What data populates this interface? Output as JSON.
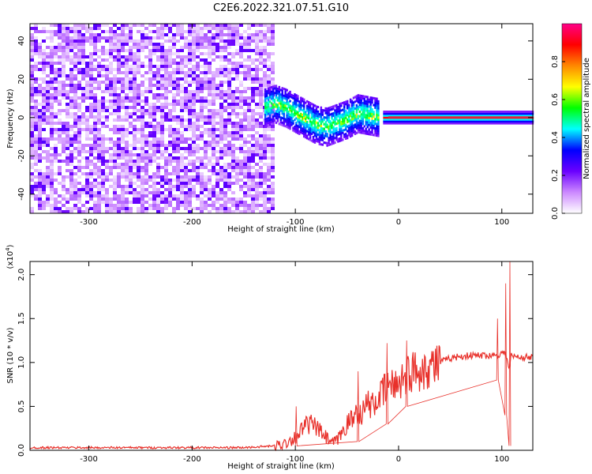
{
  "figure": {
    "title": "C2E6.2022.321.07.51.G10"
  },
  "colors": {
    "snr_line": "#e8302a",
    "ridge": "#e51e3a",
    "axis": "#000000"
  },
  "chart_data": [
    {
      "type": "heatmap",
      "title": "",
      "xlabel": "Height of straight line (km)",
      "ylabel": "Frequency (Hz)",
      "xlim": [
        -357,
        130
      ],
      "ylim": [
        -50,
        49
      ],
      "x_ticks": [
        -300,
        -200,
        -100,
        0,
        100
      ],
      "y_ticks": [
        -40,
        -20,
        0,
        20,
        40
      ],
      "x_tick_labels": [
        "-300",
        "-200",
        "-100",
        "0",
        "100"
      ],
      "y_tick_labels": [
        "-40",
        "-20",
        "0",
        "20",
        "40"
      ],
      "colorbar": {
        "label": "Normalized spectral amplitude",
        "range": [
          0.0,
          1.0
        ],
        "ticks": [
          0.0,
          0.2,
          0.4,
          0.6,
          0.8
        ],
        "tick_labels": [
          "0.0",
          "0.2",
          "0.4",
          "0.6",
          "0.8"
        ],
        "colormap": [
          "#ffffff",
          "#cc88ff",
          "#6a00ff",
          "#0000ff",
          "#00ffff",
          "#00ff00",
          "#ffff00",
          "#ff8800",
          "#ff0000",
          "#ff0088"
        ]
      },
      "regions": [
        {
          "name": "noise",
          "x_range": [
            -357,
            -120
          ],
          "freq_range": [
            -50,
            49
          ],
          "amplitude": 0.15
        },
        {
          "name": "onset",
          "x_range": [
            -130,
            -20
          ],
          "amplitude": 0.45
        },
        {
          "name": "carrier",
          "x_range": [
            -15,
            130
          ],
          "freq": 0,
          "amplitude": 0.9
        }
      ],
      "ridge": {
        "x": [
          -135,
          -120,
          -110,
          -100,
          -90,
          -80,
          -70,
          -60,
          -50,
          -40,
          -30,
          -20,
          -10,
          0,
          20,
          40,
          60,
          80,
          100,
          130
        ],
        "freq": [
          5,
          8,
          6,
          3,
          0,
          -3,
          -4,
          -2,
          0,
          3,
          2,
          1,
          0,
          0,
          0,
          0,
          0,
          0,
          0,
          0
        ]
      },
      "grid": false
    },
    {
      "type": "line",
      "title": "",
      "xlabel": "Height of straight line (km)",
      "ylabel": "SNR (10 * v/v)",
      "y_multiplier_label": "(x10",
      "y_multiplier_exp": "4",
      "xlim": [
        -357,
        130
      ],
      "ylim": [
        0,
        2.15
      ],
      "x_ticks": [
        -300,
        -200,
        -100,
        0,
        100
      ],
      "y_ticks": [
        0.0,
        0.5,
        1.0,
        1.5,
        2.0
      ],
      "x_tick_labels": [
        "-300",
        "-200",
        "-100",
        "0",
        "100"
      ],
      "y_tick_labels": [
        "0.0",
        "0.5",
        "1.0",
        "1.5",
        "2.0"
      ],
      "series": [
        {
          "x": [
            -357,
            -300,
            -200,
            -150,
            -120,
            -110,
            -100,
            -95,
            -90,
            -85,
            -80,
            -75,
            -70,
            -65,
            -60,
            -55,
            -50,
            -45,
            -40,
            -35,
            -30,
            -25,
            -20,
            -15,
            -10,
            -5,
            0,
            5,
            10,
            20,
            30,
            40,
            50,
            60,
            70,
            80,
            90,
            95,
            100,
            103,
            105,
            107,
            109,
            111,
            115,
            120,
            130
          ],
          "y": [
            0.03,
            0.03,
            0.03,
            0.03,
            0.05,
            0.08,
            0.15,
            0.22,
            0.28,
            0.3,
            0.26,
            0.2,
            0.14,
            0.08,
            0.1,
            0.2,
            0.3,
            0.35,
            0.45,
            0.42,
            0.55,
            0.5,
            0.6,
            0.65,
            0.75,
            0.72,
            0.8,
            0.83,
            0.88,
            0.92,
            0.96,
            1.0,
            1.05,
            1.07,
            1.08,
            1.08,
            1.08,
            1.09,
            1.1,
            1.12,
            1.05,
            0.9,
            1.08,
            1.07,
            1.06,
            1.06,
            1.06
          ]
        }
      ],
      "spikes": [
        {
          "x": -100,
          "min": 0.05,
          "max": 0.5
        },
        {
          "x": -40,
          "min": 0.1,
          "max": 0.9
        },
        {
          "x": -12,
          "min": 0.3,
          "max": 1.22
        },
        {
          "x": 7,
          "min": 0.5,
          "max": 1.25
        },
        {
          "x": 95,
          "min": 0.8,
          "max": 1.5
        },
        {
          "x": 103,
          "min": 0.4,
          "max": 1.9
        },
        {
          "x": 107,
          "min": 0.05,
          "max": 2.15
        }
      ],
      "grid": false
    }
  ]
}
